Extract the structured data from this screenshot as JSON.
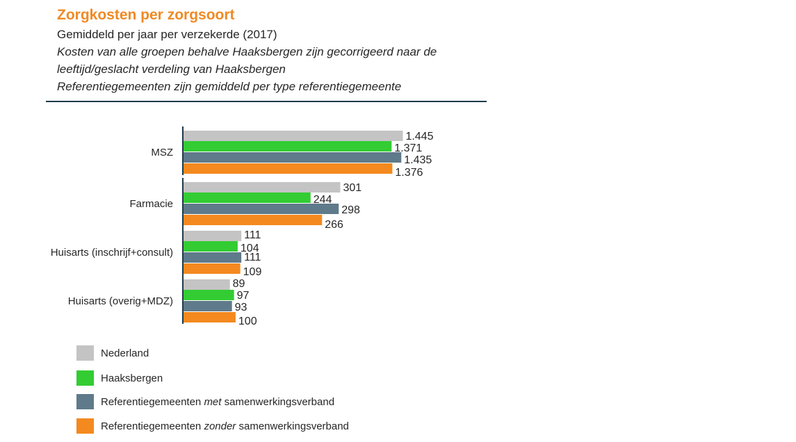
{
  "header": {
    "title": "Zorgkosten per zorgsoort",
    "subtitle": "Gemiddeld per jaar per verzekerde (2017)",
    "note_line1": "Kosten van alle groepen behalve Haaksbergen zijn gecorrigeerd naar de",
    "note_line2": "leeftijd/geslacht verdeling van Haaksbergen",
    "note_line3": "Referentiegemeenten zijn gemiddeld per type referentiegemeente"
  },
  "colors": {
    "nederland": "#c4c4c4",
    "haaksbergen": "#33cc33",
    "ref_met": "#5f7a8a",
    "ref_zonder": "#f4891f"
  },
  "legend": [
    {
      "key": "nederland",
      "label_pre": "Nederland",
      "label_em": "",
      "label_post": ""
    },
    {
      "key": "haaksbergen",
      "label_pre": "Haaksbergen",
      "label_em": "",
      "label_post": ""
    },
    {
      "key": "ref_met",
      "label_pre": "Referentiegemeenten ",
      "label_em": "met",
      "label_post": " samenwerkingsverband"
    },
    {
      "key": "ref_zonder",
      "label_pre": "Referentiegemeenten ",
      "label_em": "zonder",
      "label_post": " samenwerkingsverband"
    }
  ],
  "chart_data": {
    "type": "bar",
    "orientation": "horizontal",
    "title": "Zorgkosten per zorgsoort",
    "categories": [
      "MSZ",
      "Farmacie",
      "Huisarts (inschrijf+consult)",
      "Huisarts (overig+MDZ)"
    ],
    "series": [
      {
        "name": "Nederland",
        "color": "#c4c4c4",
        "values": [
          1445,
          301,
          111,
          89
        ],
        "labels": [
          "1.445",
          "301",
          "111",
          "89"
        ]
      },
      {
        "name": "Haaksbergen",
        "color": "#33cc33",
        "values": [
          1371,
          244,
          104,
          97
        ],
        "labels": [
          "1.371",
          "244",
          "104",
          "97"
        ]
      },
      {
        "name": "Referentiegemeenten met samenwerkingsverband",
        "color": "#5f7a8a",
        "values": [
          1435,
          298,
          111,
          93
        ],
        "labels": [
          "1.435",
          "298",
          "111",
          "93"
        ]
      },
      {
        "name": "Referentiegemeenten zonder samenwerkingsverband",
        "color": "#f4891f",
        "values": [
          1376,
          266,
          109,
          100
        ],
        "labels": [
          "1.376",
          "266",
          "109",
          "100"
        ]
      }
    ],
    "axis_breaks": true,
    "gridlines": false,
    "legend_position": "bottom-left"
  }
}
